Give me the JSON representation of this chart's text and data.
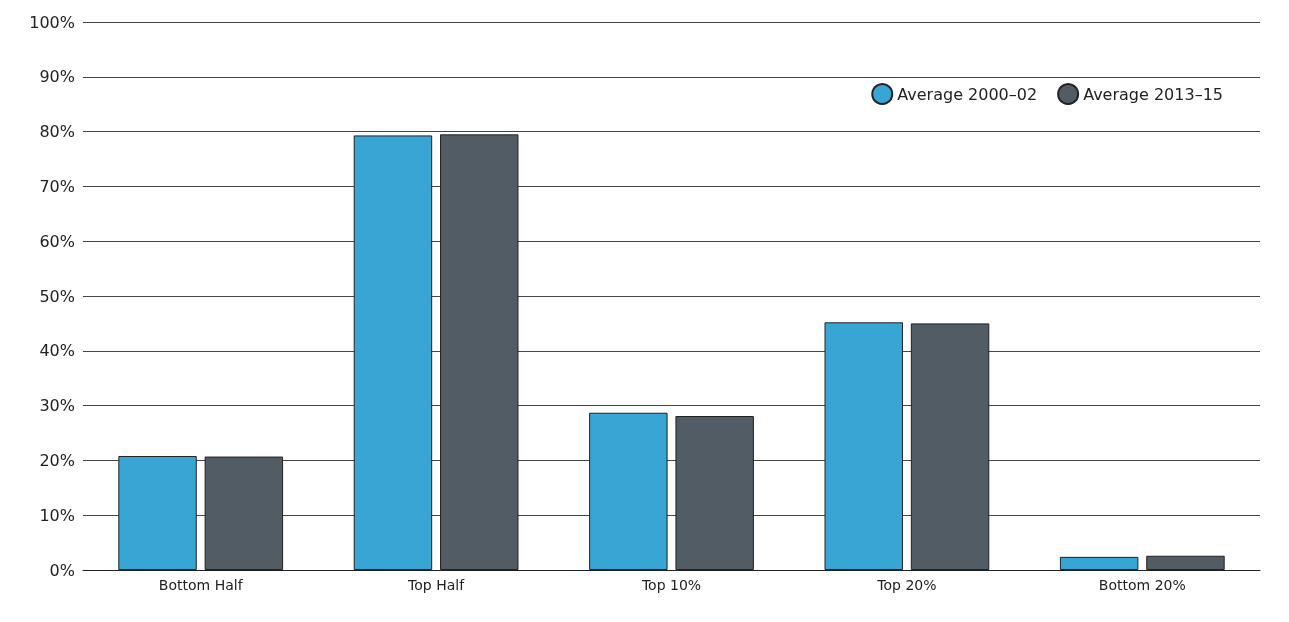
{
  "chart_data": {
    "type": "bar",
    "categories": [
      "Bottom Half",
      "Top Half",
      "Top 10%",
      "Top 20%",
      "Bottom 20%"
    ],
    "series": [
      {
        "name": "Average 2000–02",
        "color": "#38a6d5",
        "values": [
          20.8,
          79.3,
          28.7,
          45.2,
          2.4
        ]
      },
      {
        "name": "Average 2013–15",
        "color": "#515c64",
        "values": [
          20.7,
          79.5,
          28.1,
          45.0,
          2.6
        ]
      }
    ],
    "ylim": [
      0,
      100
    ],
    "yticks": [
      {
        "value": 0,
        "label": "0%"
      },
      {
        "value": 10,
        "label": "10%"
      },
      {
        "value": 20,
        "label": "20%"
      },
      {
        "value": 30,
        "label": "30%"
      },
      {
        "value": 40,
        "label": "40%"
      },
      {
        "value": 50,
        "label": "50%"
      },
      {
        "value": 60,
        "label": "60%"
      },
      {
        "value": 70,
        "label": "70%"
      },
      {
        "value": 80,
        "label": "80%"
      },
      {
        "value": 90,
        "label": "90%"
      },
      {
        "value": 100,
        "label": "100%"
      }
    ],
    "grid": "y",
    "legend": "top right",
    "marker": "circle"
  }
}
